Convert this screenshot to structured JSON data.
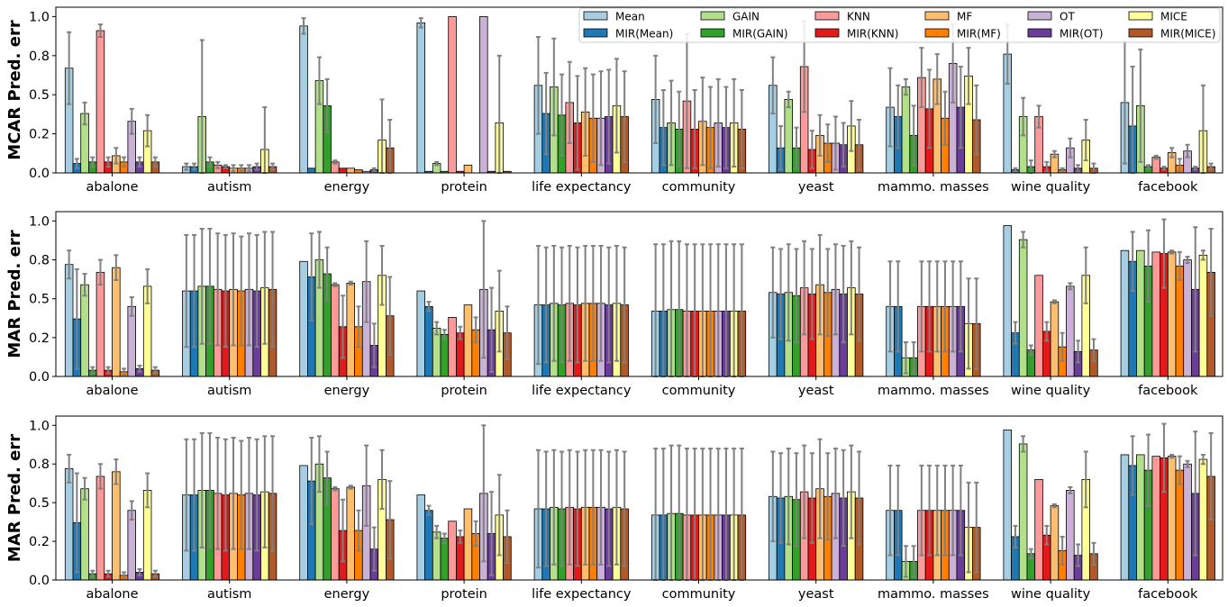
{
  "chart_data": {
    "type": "bar",
    "categories": [
      "abalone",
      "autism",
      "energy",
      "protein",
      "life expectancy",
      "community",
      "yeast",
      "mammo. masses",
      "wine quality",
      "facebook"
    ],
    "methods": [
      "Mean",
      "MIR(Mean)",
      "GAIN",
      "MIR(GAIN)",
      "KNN",
      "MIR(KNN)",
      "MF",
      "MIR(MF)",
      "OT",
      "MIR(OT)",
      "MICE",
      "MIR(MICE)"
    ],
    "legend_order": [
      "Mean",
      "GAIN",
      "KNN",
      "MF",
      "OT",
      "MICE",
      "MIR(Mean)",
      "MIR(GAIN)",
      "MIR(KNN)",
      "MIR(MF)",
      "MIR(OT)",
      "MIR(MICE)"
    ],
    "colors": [
      "#a6cee3",
      "#1f78b4",
      "#b2df8a",
      "#33a02c",
      "#fb9a99",
      "#e31a1c",
      "#fdbf6f",
      "#ff7f00",
      "#cab2d6",
      "#6a3d9a",
      "#ffff99",
      "#b15928"
    ],
    "error_color": "#808080",
    "legend_position": "top-right (top panel)",
    "ylim": [
      0,
      1.06
    ],
    "yticks": [
      0,
      0.25,
      0.5,
      0.75,
      1.0
    ],
    "ytick_labels": [
      "0.0",
      "0.2",
      "0.5",
      "0.8",
      "1.0"
    ],
    "panels": [
      {
        "ylabel": "MCAR Pred. err",
        "values": [
          [
            0.67,
            0.06,
            0.38,
            0.07,
            0.91,
            0.07,
            0.11,
            0.07,
            0.33,
            0.07,
            0.27,
            0.07
          ],
          [
            0.04,
            0.04,
            0.36,
            0.07,
            0.05,
            0.04,
            0.03,
            0.03,
            0.03,
            0.04,
            0.15,
            0.04
          ],
          [
            0.94,
            0.03,
            0.59,
            0.43,
            0.07,
            0.03,
            0.03,
            0.02,
            0.01,
            0.02,
            0.21,
            0.16
          ],
          [
            0.96,
            0.01,
            0.06,
            0.01,
            1.0,
            0.01,
            0.05,
            0.0,
            1.0,
            0.01,
            0.32,
            0.01
          ],
          [
            0.56,
            0.38,
            0.55,
            0.37,
            0.45,
            0.32,
            0.39,
            0.35,
            0.35,
            0.36,
            0.43,
            0.36
          ],
          [
            0.47,
            0.29,
            0.32,
            0.28,
            0.46,
            0.28,
            0.33,
            0.29,
            0.32,
            0.29,
            0.32,
            0.28
          ],
          [
            0.56,
            0.16,
            0.47,
            0.16,
            0.68,
            0.15,
            0.24,
            0.19,
            0.19,
            0.18,
            0.3,
            0.18
          ],
          [
            0.42,
            0.36,
            0.55,
            0.24,
            0.61,
            0.41,
            0.6,
            0.35,
            0.7,
            0.42,
            0.62,
            0.34
          ],
          [
            0.76,
            0.02,
            0.36,
            0.04,
            0.36,
            0.04,
            0.12,
            0.02,
            0.16,
            0.03,
            0.21,
            0.03
          ],
          [
            0.45,
            0.3,
            0.43,
            0.04,
            0.1,
            0.03,
            0.13,
            0.05,
            0.14,
            0.03,
            0.27,
            0.04
          ]
        ],
        "errors": [
          [
            0.23,
            0.03,
            0.07,
            0.03,
            0.04,
            0.03,
            0.05,
            0.03,
            0.08,
            0.03,
            0.1,
            0.03
          ],
          [
            0.02,
            0.02,
            0.49,
            0.03,
            0.02,
            0.01,
            0.02,
            0.02,
            0.02,
            0.02,
            0.27,
            0.02
          ],
          [
            0.05,
            0.0,
            0.15,
            0.17,
            0.01,
            0.0,
            0.0,
            0.0,
            0.0,
            0.01,
            0.26,
            0.18
          ],
          [
            0.03,
            0.0,
            0.01,
            0.0,
            0.0,
            0.0,
            0.0,
            0.0,
            0.0,
            0.0,
            0.43,
            0.0
          ],
          [
            0.31,
            0.26,
            0.31,
            0.26,
            0.26,
            0.3,
            0.28,
            0.28,
            0.3,
            0.3,
            0.3,
            0.29
          ],
          [
            0.28,
            0.24,
            0.27,
            0.24,
            0.43,
            0.25,
            0.28,
            0.26,
            0.28,
            0.26,
            0.28,
            0.25
          ],
          [
            0.18,
            0.14,
            0.05,
            0.13,
            0.29,
            0.12,
            0.13,
            0.12,
            0.17,
            0.14,
            0.16,
            0.16
          ],
          [
            0.25,
            0.2,
            0.05,
            0.19,
            0.19,
            0.25,
            0.16,
            0.17,
            0.25,
            0.26,
            0.18,
            0.22
          ],
          [
            0.19,
            0.01,
            0.12,
            0.04,
            0.07,
            0.03,
            0.02,
            0.01,
            0.06,
            0.02,
            0.13,
            0.03
          ],
          [
            0.39,
            0.38,
            0.36,
            0.01,
            0.01,
            0.01,
            0.03,
            0.04,
            0.04,
            0.01,
            0.29,
            0.02
          ]
        ]
      },
      {
        "ylabel": "MAR Pred. err",
        "values": [
          [
            0.72,
            0.37,
            0.59,
            0.04,
            0.67,
            0.04,
            0.7,
            0.03,
            0.45,
            0.05,
            0.58,
            0.04
          ],
          [
            0.55,
            0.55,
            0.58,
            0.58,
            0.56,
            0.55,
            0.56,
            0.55,
            0.56,
            0.55,
            0.57,
            0.56
          ],
          [
            0.74,
            0.64,
            0.75,
            0.66,
            0.59,
            0.32,
            0.6,
            0.32,
            0.61,
            0.2,
            0.65,
            0.39
          ],
          [
            0.55,
            0.45,
            0.31,
            0.27,
            0.38,
            0.28,
            0.46,
            0.3,
            0.56,
            0.3,
            0.42,
            0.28
          ],
          [
            0.46,
            0.46,
            0.47,
            0.46,
            0.47,
            0.46,
            0.47,
            0.47,
            0.47,
            0.46,
            0.47,
            0.46
          ],
          [
            0.42,
            0.42,
            0.43,
            0.43,
            0.42,
            0.42,
            0.42,
            0.42,
            0.42,
            0.42,
            0.42,
            0.42
          ],
          [
            0.54,
            0.53,
            0.54,
            0.52,
            0.57,
            0.53,
            0.59,
            0.54,
            0.56,
            0.53,
            0.57,
            0.53
          ],
          [
            0.45,
            0.45,
            0.12,
            0.12,
            0.45,
            0.45,
            0.45,
            0.45,
            0.45,
            0.45,
            0.34,
            0.34
          ],
          [
            0.97,
            0.28,
            0.88,
            0.17,
            0.65,
            0.29,
            0.48,
            0.19,
            0.58,
            0.16,
            0.65,
            0.17
          ],
          [
            0.81,
            0.74,
            0.81,
            0.71,
            0.8,
            0.79,
            0.8,
            0.71,
            0.75,
            0.56,
            0.78,
            0.67
          ]
        ],
        "errors": [
          [
            0.09,
            0.32,
            0.07,
            0.02,
            0.08,
            0.02,
            0.08,
            0.02,
            0.06,
            0.02,
            0.11,
            0.02
          ],
          [
            0.36,
            0.36,
            0.37,
            0.37,
            0.36,
            0.36,
            0.36,
            0.35,
            0.36,
            0.36,
            0.36,
            0.37
          ],
          [
            0.0,
            0.28,
            0.18,
            0.17,
            0.01,
            0.2,
            0.01,
            0.13,
            0.26,
            0.14,
            0.19,
            0.25
          ],
          [
            0.0,
            0.03,
            0.04,
            0.03,
            0.0,
            0.04,
            0.0,
            0.08,
            0.44,
            0.27,
            0.26,
            0.17
          ],
          [
            0.38,
            0.37,
            0.37,
            0.37,
            0.37,
            0.37,
            0.37,
            0.37,
            0.37,
            0.37,
            0.37,
            0.37
          ],
          [
            0.43,
            0.43,
            0.44,
            0.44,
            0.43,
            0.43,
            0.43,
            0.43,
            0.43,
            0.43,
            0.43,
            0.43
          ],
          [
            0.29,
            0.29,
            0.31,
            0.3,
            0.3,
            0.29,
            0.32,
            0.28,
            0.29,
            0.31,
            0.3,
            0.3
          ],
          [
            0.29,
            0.29,
            0.1,
            0.1,
            0.29,
            0.29,
            0.29,
            0.29,
            0.29,
            0.29,
            0.29,
            0.29
          ],
          [
            0.0,
            0.07,
            0.05,
            0.03,
            0.0,
            0.06,
            0.01,
            0.09,
            0.02,
            0.07,
            0.18,
            0.07
          ],
          [
            0.0,
            0.19,
            0.0,
            0.23,
            0.0,
            0.22,
            0.01,
            0.09,
            0.02,
            0.4,
            0.03,
            0.28
          ]
        ]
      },
      {
        "ylabel": "MAR Pred. err",
        "same_as_panel": 1
      }
    ]
  }
}
